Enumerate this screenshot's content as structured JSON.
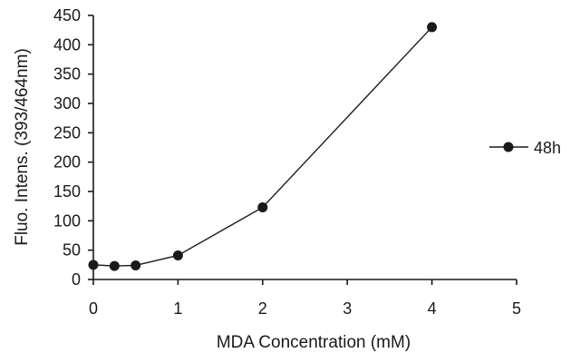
{
  "chart_data": {
    "type": "line",
    "xlabel": "MDA  Concentration  (mM)",
    "ylabel": "Fluo.  Intens.  (393/464nm)",
    "xlim": [
      0,
      5
    ],
    "ylim": [
      0,
      450
    ],
    "xticks": [
      "0",
      "1",
      "2",
      "3",
      "4",
      "5"
    ],
    "yticks": [
      "0",
      "50",
      "100",
      "150",
      "200",
      "250",
      "300",
      "350",
      "400",
      "450"
    ],
    "grid": false,
    "legend_position": "right",
    "series": [
      {
        "name": "48h",
        "color": "#1a1a1a",
        "marker": "circle",
        "x": [
          0,
          0.25,
          0.5,
          1,
          2,
          4
        ],
        "y": [
          25,
          23,
          24,
          41,
          123,
          430
        ]
      }
    ]
  }
}
